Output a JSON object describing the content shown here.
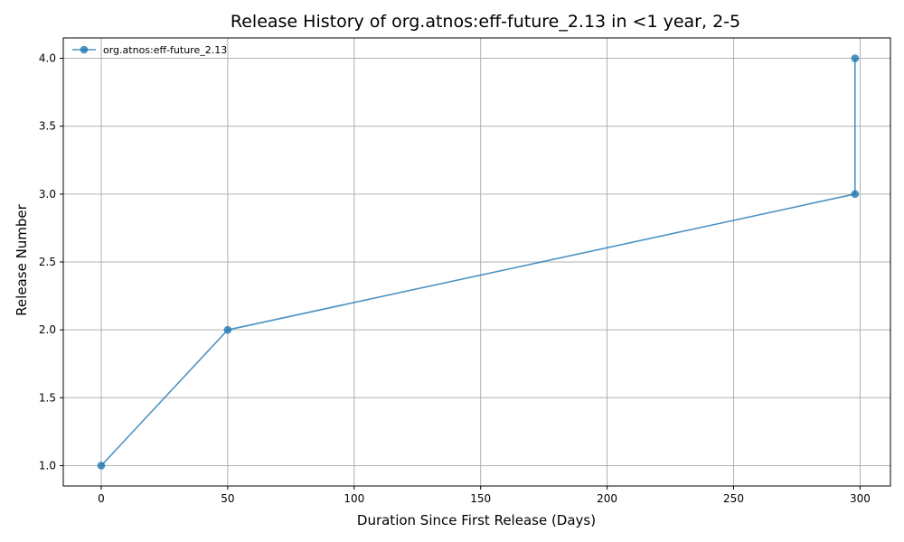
{
  "chart_data": {
    "type": "line",
    "title": "Release History of org.atnos:eff-future_2.13 in <1 year, 2-5",
    "xlabel": "Duration Since First Release (Days)",
    "ylabel": "Release Number",
    "xlim": [
      -15,
      312
    ],
    "ylim": [
      0.85,
      4.15
    ],
    "xticks": [
      0,
      50,
      100,
      150,
      200,
      250,
      300
    ],
    "yticks": [
      1.0,
      1.5,
      2.0,
      2.5,
      3.0,
      3.5,
      4.0
    ],
    "xtick_labels": [
      "0",
      "50",
      "100",
      "150",
      "200",
      "250",
      "300"
    ],
    "ytick_labels": [
      "1.0",
      "1.5",
      "2.0",
      "2.5",
      "3.0",
      "3.5",
      "4.0"
    ],
    "grid": true,
    "legend_position": "top-left",
    "series": [
      {
        "name": "org.atnos:eff-future_2.13",
        "color": "#1f77b4",
        "x": [
          0,
          50,
          298,
          298
        ],
        "y": [
          1,
          2,
          3,
          4
        ]
      }
    ]
  }
}
